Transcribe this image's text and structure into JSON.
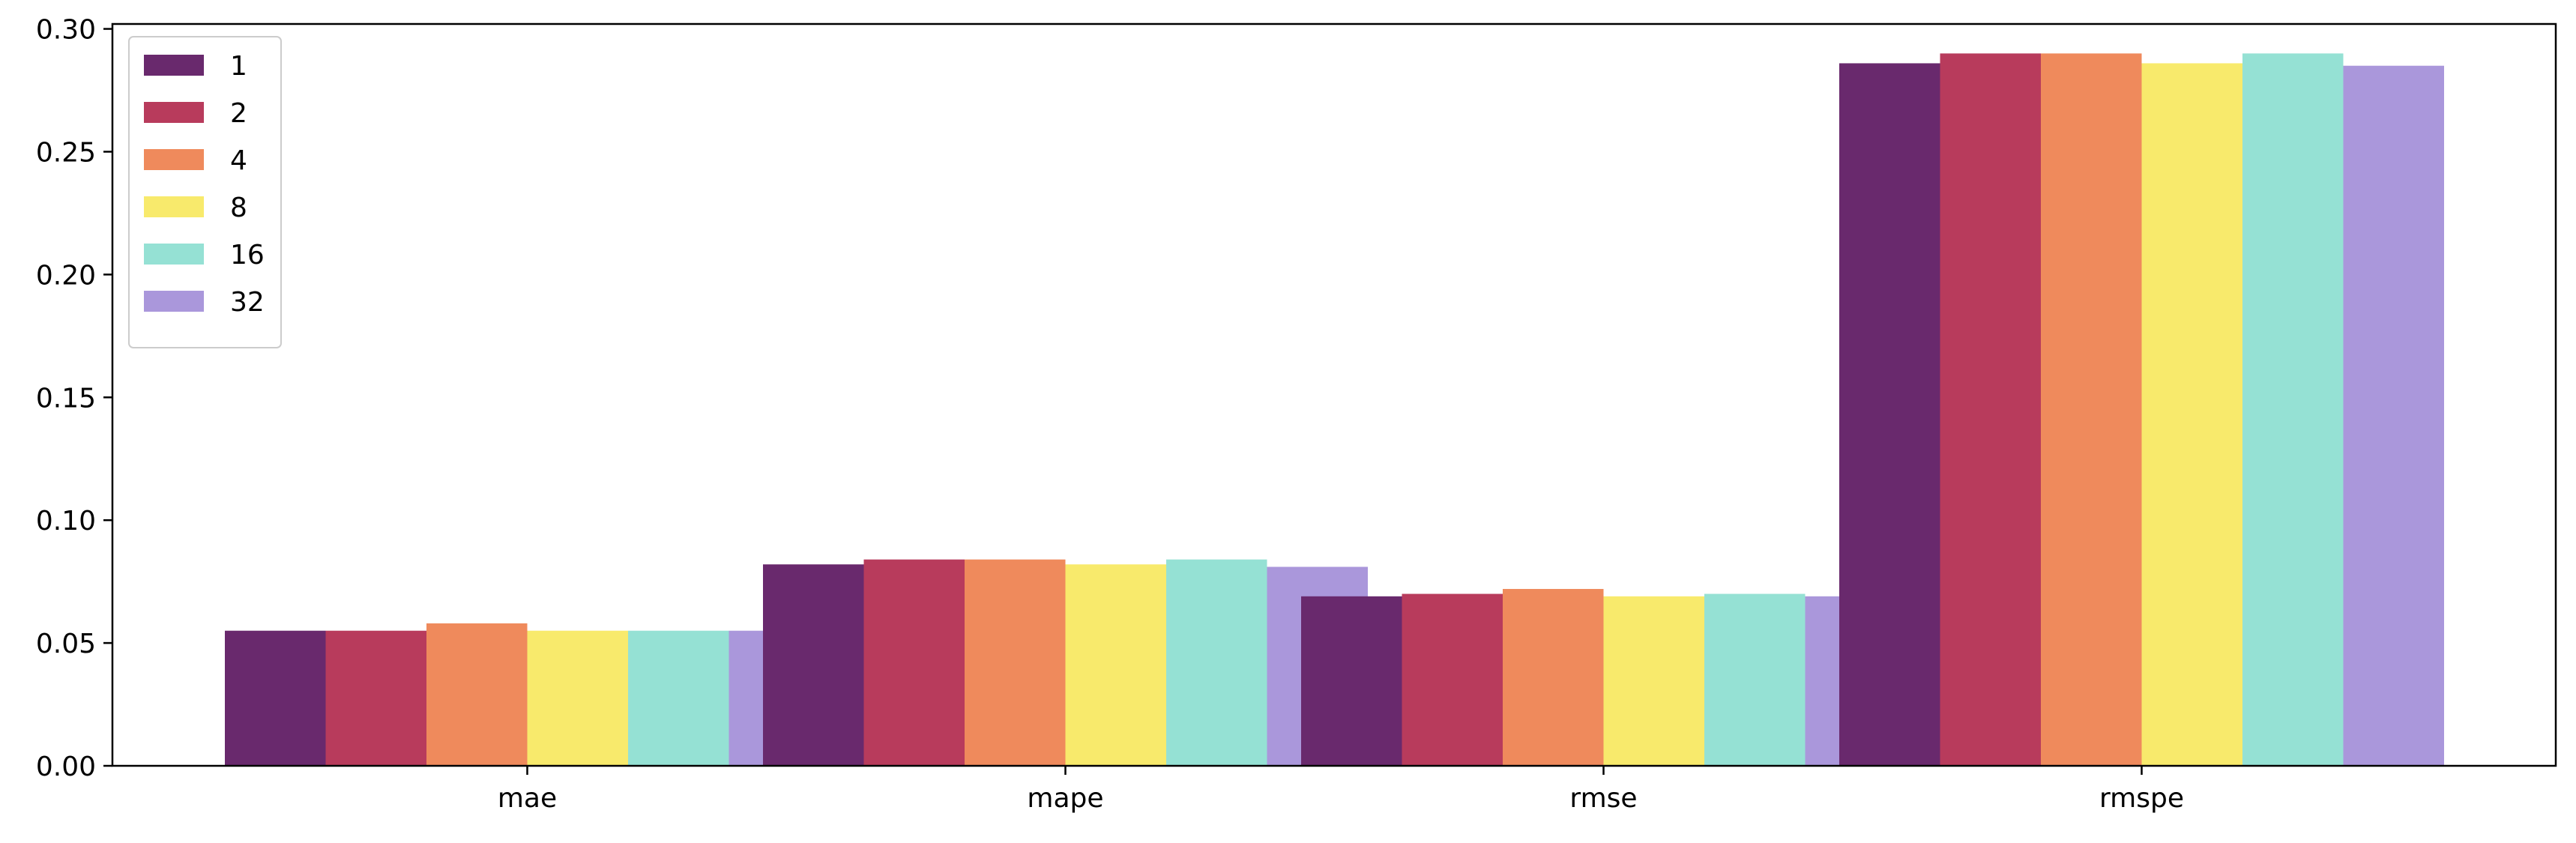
{
  "chart_data": {
    "type": "bar",
    "title": "",
    "xlabel": "",
    "ylabel": "",
    "categories": [
      "mae",
      "mape",
      "rmse",
      "rmspe"
    ],
    "ylim": [
      0,
      0.302
    ],
    "yticks": [
      "0.00",
      "0.05",
      "0.10",
      "0.15",
      "0.20",
      "0.25",
      "0.30"
    ],
    "grid": false,
    "legend_position": "upper-left",
    "series": [
      {
        "name": "1",
        "color": "#69296D",
        "values": [
          0.055,
          0.082,
          0.069,
          0.286
        ]
      },
      {
        "name": "2",
        "color": "#B83B5C",
        "values": [
          0.055,
          0.084,
          0.07,
          0.29
        ]
      },
      {
        "name": "4",
        "color": "#EF8A5C",
        "values": [
          0.058,
          0.084,
          0.072,
          0.29
        ]
      },
      {
        "name": "8",
        "color": "#F8EA6C",
        "values": [
          0.055,
          0.082,
          0.069,
          0.286
        ]
      },
      {
        "name": "16",
        "color": "#95E1D4",
        "values": [
          0.055,
          0.084,
          0.07,
          0.29
        ]
      },
      {
        "name": "32",
        "color": "#AA97DB",
        "values": [
          0.055,
          0.081,
          0.069,
          0.285
        ]
      }
    ]
  }
}
